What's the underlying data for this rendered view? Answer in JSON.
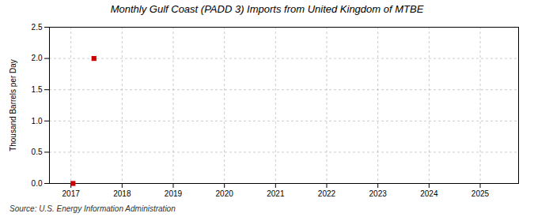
{
  "chart_data": {
    "type": "scatter",
    "title": "Monthly Gulf Coast (PADD 3) Imports from United Kingdom of MTBE",
    "ylabel": "Thousand Barrels per Day",
    "source": "Source: U.S. Energy Information Administration",
    "x": [
      2017.04,
      2017.45
    ],
    "values": [
      0.0,
      2.0
    ],
    "color": "#cc0000",
    "marker": "square",
    "xlim": [
      2016.58,
      2025.75
    ],
    "ylim": [
      0.0,
      2.5
    ],
    "xticks": [
      2017,
      2018,
      2019,
      2020,
      2021,
      2022,
      2023,
      2024,
      2025
    ],
    "yticks": [
      {
        "value": 0,
        "label": "0.0"
      },
      0.5,
      {
        "value": 1,
        "label": "1.0"
      },
      1.5,
      {
        "value": 2,
        "label": "2.0"
      },
      2.5
    ],
    "grid": true
  }
}
